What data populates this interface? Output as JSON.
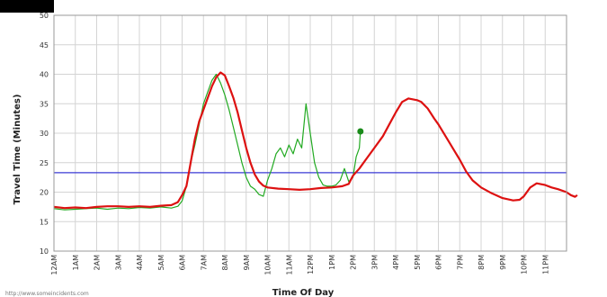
{
  "chart_data": {
    "type": "line",
    "xlabel": "Time Of Day",
    "ylabel": "Travel Time (Minutes)",
    "ylim": [
      10,
      50
    ],
    "y_ticks": [
      10,
      15,
      20,
      25,
      30,
      35,
      40,
      45,
      50
    ],
    "xlim_hours": [
      0,
      24
    ],
    "x_tick_labels": [
      "12AM",
      "1AM",
      "2AM",
      "3AM",
      "4AM",
      "5AM",
      "6AM",
      "7AM",
      "8AM",
      "9AM",
      "10AM",
      "11AM",
      "12PM",
      "1PM",
      "2PM",
      "3PM",
      "4PM",
      "5PM",
      "6PM",
      "7PM",
      "8PM",
      "9PM",
      "10PM",
      "11PM"
    ],
    "grid": true,
    "reference_line": {
      "y": 23.3,
      "color": "#3a3ad6"
    },
    "current_point": {
      "x_hour": 14.35,
      "y": 30.3,
      "color": "#1a8a1a"
    },
    "series": [
      {
        "color": "#dd1111",
        "points": [
          [
            0,
            17.5
          ],
          [
            0.5,
            17.3
          ],
          [
            1,
            17.4
          ],
          [
            1.5,
            17.3
          ],
          [
            2,
            17.5
          ],
          [
            2.5,
            17.6
          ],
          [
            3,
            17.6
          ],
          [
            3.5,
            17.5
          ],
          [
            4,
            17.6
          ],
          [
            4.5,
            17.5
          ],
          [
            5,
            17.7
          ],
          [
            5.5,
            17.8
          ],
          [
            5.8,
            18.3
          ],
          [
            6,
            19.5
          ],
          [
            6.2,
            21
          ],
          [
            6.4,
            25
          ],
          [
            6.6,
            29
          ],
          [
            6.8,
            32
          ],
          [
            7,
            34
          ],
          [
            7.2,
            36
          ],
          [
            7.4,
            38
          ],
          [
            7.6,
            39.5
          ],
          [
            7.8,
            40.3
          ],
          [
            8,
            39.8
          ],
          [
            8.2,
            38
          ],
          [
            8.4,
            36
          ],
          [
            8.6,
            33.5
          ],
          [
            8.8,
            30.5
          ],
          [
            9,
            27.5
          ],
          [
            9.2,
            25
          ],
          [
            9.4,
            23
          ],
          [
            9.6,
            21.8
          ],
          [
            9.8,
            21.1
          ],
          [
            10,
            20.8
          ],
          [
            10.5,
            20.6
          ],
          [
            11,
            20.5
          ],
          [
            11.5,
            20.4
          ],
          [
            12,
            20.5
          ],
          [
            12.5,
            20.7
          ],
          [
            13,
            20.8
          ],
          [
            13.5,
            21
          ],
          [
            13.8,
            21.4
          ],
          [
            14,
            22.8
          ],
          [
            14.3,
            24
          ],
          [
            14.6,
            25.5
          ],
          [
            15,
            27.5
          ],
          [
            15.4,
            29.5
          ],
          [
            15.7,
            31.5
          ],
          [
            16,
            33.5
          ],
          [
            16.3,
            35.3
          ],
          [
            16.6,
            35.9
          ],
          [
            17,
            35.6
          ],
          [
            17.2,
            35.3
          ],
          [
            17.5,
            34.2
          ],
          [
            17.8,
            32.5
          ],
          [
            18,
            31.5
          ],
          [
            18.5,
            28.5
          ],
          [
            19,
            25.5
          ],
          [
            19.3,
            23.5
          ],
          [
            19.6,
            22
          ],
          [
            20,
            20.8
          ],
          [
            20.5,
            19.8
          ],
          [
            21,
            19
          ],
          [
            21.5,
            18.6
          ],
          [
            21.8,
            18.7
          ],
          [
            22,
            19.3
          ],
          [
            22.3,
            20.8
          ],
          [
            22.6,
            21.5
          ],
          [
            23,
            21.2
          ],
          [
            23.3,
            20.8
          ],
          [
            23.6,
            20.5
          ],
          [
            24,
            20
          ],
          [
            24.2,
            19.5
          ],
          [
            24.4,
            19.2
          ],
          [
            24.5,
            19.5
          ]
        ]
      },
      {
        "color": "#22aa22",
        "points": [
          [
            0,
            17.2
          ],
          [
            0.5,
            17
          ],
          [
            1,
            17.1
          ],
          [
            1.5,
            17.2
          ],
          [
            2,
            17.3
          ],
          [
            2.5,
            17.1
          ],
          [
            3,
            17.3
          ],
          [
            3.5,
            17.2
          ],
          [
            4,
            17.4
          ],
          [
            4.5,
            17.3
          ],
          [
            5,
            17.5
          ],
          [
            5.5,
            17.3
          ],
          [
            5.8,
            17.6
          ],
          [
            6,
            18.5
          ],
          [
            6.2,
            21
          ],
          [
            6.4,
            25
          ],
          [
            6.6,
            28
          ],
          [
            6.8,
            31.5
          ],
          [
            7,
            35
          ],
          [
            7.2,
            37
          ],
          [
            7.4,
            39
          ],
          [
            7.6,
            40
          ],
          [
            7.8,
            38.5
          ],
          [
            8,
            36.5
          ],
          [
            8.2,
            34
          ],
          [
            8.4,
            31
          ],
          [
            8.6,
            28
          ],
          [
            8.8,
            25
          ],
          [
            9,
            22.5
          ],
          [
            9.2,
            21
          ],
          [
            9.4,
            20.5
          ],
          [
            9.6,
            19.6
          ],
          [
            9.8,
            19.3
          ],
          [
            10,
            22
          ],
          [
            10.2,
            24
          ],
          [
            10.4,
            26.5
          ],
          [
            10.6,
            27.5
          ],
          [
            10.8,
            26
          ],
          [
            11,
            28
          ],
          [
            11.2,
            26.5
          ],
          [
            11.4,
            29
          ],
          [
            11.6,
            27.5
          ],
          [
            11.8,
            35
          ],
          [
            12,
            30
          ],
          [
            12.2,
            25
          ],
          [
            12.4,
            22.5
          ],
          [
            12.6,
            21.2
          ],
          [
            12.8,
            21
          ],
          [
            13,
            21
          ],
          [
            13.2,
            21.2
          ],
          [
            13.4,
            22
          ],
          [
            13.6,
            24
          ],
          [
            13.8,
            21.8
          ],
          [
            14,
            22.5
          ],
          [
            14.15,
            26
          ],
          [
            14.3,
            27.5
          ],
          [
            14.35,
            30.3
          ]
        ]
      }
    ]
  },
  "watermark": "http://www.someincidents.com"
}
